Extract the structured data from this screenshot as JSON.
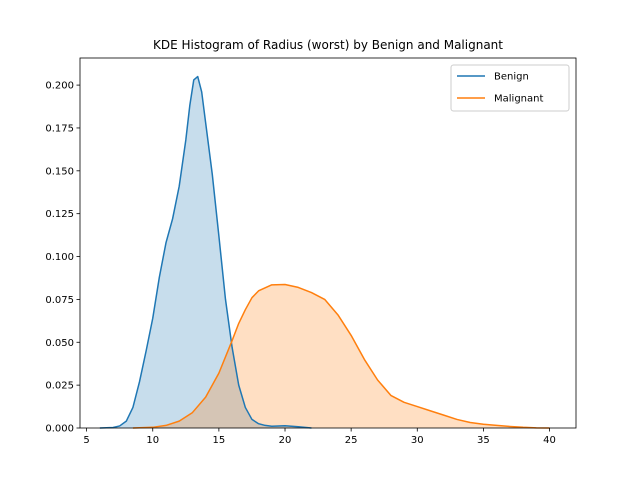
{
  "chart_data": {
    "type": "area",
    "title": "KDE Histogram of Radius (worst) by Benign and Malignant",
    "xlabel": "",
    "ylabel": "",
    "xlim": [
      4.5,
      42.0
    ],
    "ylim": [
      0.0,
      0.2158
    ],
    "xticks": [
      5,
      10,
      15,
      20,
      25,
      30,
      35,
      40
    ],
    "yticks": [
      0.0,
      0.025,
      0.05,
      0.075,
      0.1,
      0.125,
      0.15,
      0.175,
      0.2
    ],
    "ytick_labels": [
      "0.000",
      "0.025",
      "0.050",
      "0.075",
      "0.100",
      "0.125",
      "0.150",
      "0.175",
      "0.200"
    ],
    "grid": false,
    "legend_position": "top-right",
    "series": [
      {
        "name": "Benign",
        "color": "#1f77b4",
        "fill": "#c6dbed",
        "x": [
          6.0,
          7.0,
          7.5,
          8.0,
          8.5,
          9.0,
          9.5,
          10.0,
          10.5,
          11.0,
          11.5,
          12.0,
          12.5,
          12.8,
          13.1,
          13.4,
          13.7,
          14.0,
          14.5,
          15.0,
          15.5,
          16.0,
          16.5,
          17.0,
          17.5,
          18.0,
          18.5,
          19.0,
          20.0,
          21.0,
          22.0
        ],
        "y": [
          0.0,
          0.0003,
          0.0012,
          0.004,
          0.012,
          0.027,
          0.045,
          0.064,
          0.088,
          0.108,
          0.122,
          0.141,
          0.168,
          0.188,
          0.203,
          0.205,
          0.196,
          0.178,
          0.148,
          0.112,
          0.075,
          0.047,
          0.025,
          0.012,
          0.005,
          0.0025,
          0.0015,
          0.001,
          0.0013,
          0.0007,
          0.0
        ]
      },
      {
        "name": "Malignant",
        "color": "#ff7f0e",
        "fill": "#ffdab8",
        "x": [
          8.5,
          10.0,
          11.0,
          12.0,
          13.0,
          14.0,
          15.0,
          16.0,
          16.5,
          17.0,
          17.5,
          18.0,
          19.0,
          20.0,
          21.0,
          22.0,
          23.0,
          24.0,
          25.0,
          26.0,
          27.0,
          28.0,
          29.0,
          30.0,
          31.0,
          32.0,
          33.0,
          34.0,
          35.0,
          36.0,
          37.0,
          38.0,
          39.0,
          40.0
        ],
        "y": [
          0.0,
          0.0004,
          0.0015,
          0.004,
          0.009,
          0.018,
          0.032,
          0.051,
          0.061,
          0.069,
          0.076,
          0.08,
          0.0835,
          0.0837,
          0.082,
          0.079,
          0.075,
          0.066,
          0.054,
          0.04,
          0.028,
          0.019,
          0.015,
          0.0125,
          0.01,
          0.0075,
          0.005,
          0.0032,
          0.0022,
          0.0015,
          0.0009,
          0.0004,
          0.0001,
          0.0
        ]
      }
    ]
  }
}
